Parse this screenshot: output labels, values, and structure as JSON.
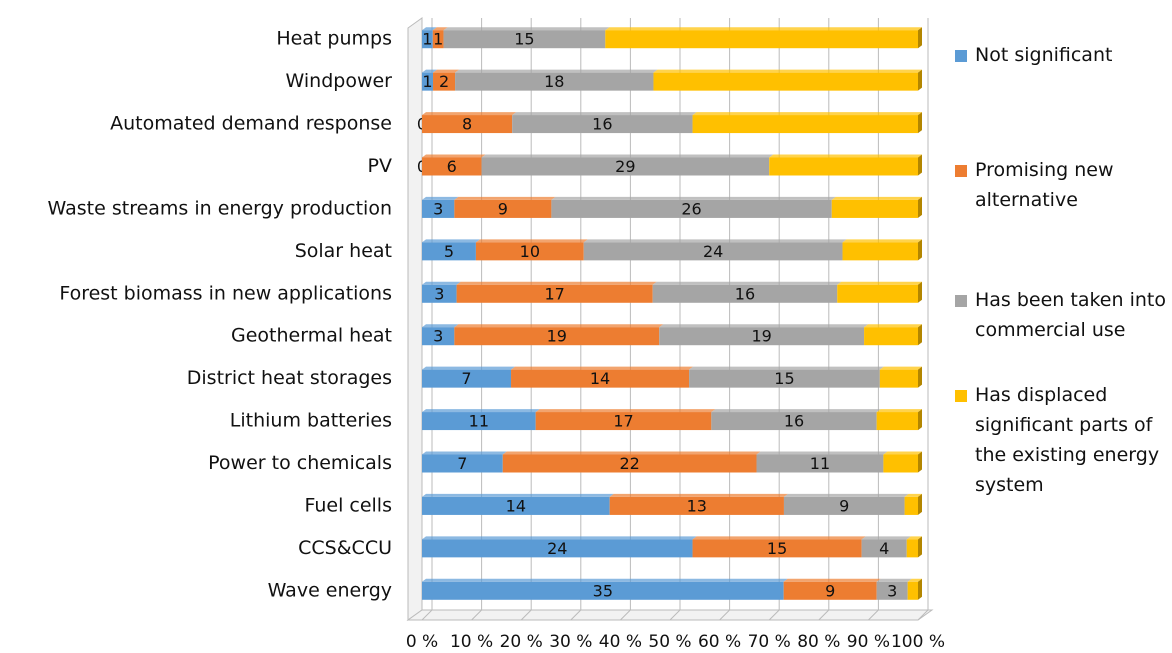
{
  "chart_data": {
    "type": "bar",
    "orientation": "horizontal",
    "stacked": "percent",
    "categories": [
      "Heat pumps",
      "Windpower",
      "Automated demand response",
      "PV",
      "Waste streams in energy production",
      "Solar heat",
      "Forest biomass in new applications",
      "Geothermal heat",
      "District heat storages",
      "Lithium batteries",
      "Power to chemicals",
      "Fuel cells",
      "CCS&CCU",
      "Wave energy"
    ],
    "series": [
      {
        "name": "Not significant",
        "color": "#5b9bd5",
        "data_labels": true,
        "values": [
          1,
          1,
          0,
          0,
          3,
          5,
          3,
          3,
          7,
          11,
          7,
          14,
          24,
          35
        ]
      },
      {
        "name": "Promising new alternative",
        "color": "#ed7d31",
        "data_labels": true,
        "values": [
          1,
          2,
          8,
          6,
          9,
          10,
          17,
          19,
          14,
          17,
          22,
          13,
          15,
          9
        ]
      },
      {
        "name": "Has been taken into commercial use",
        "color": "#a5a5a5",
        "data_labels": true,
        "values": [
          15,
          18,
          16,
          29,
          26,
          24,
          16,
          19,
          15,
          16,
          11,
          9,
          4,
          3
        ]
      },
      {
        "name": "Has displaced significant parts of the existing energy system",
        "color": "#ffc000",
        "data_labels": false,
        "values": [
          29,
          24,
          20,
          15,
          8,
          7,
          7,
          5,
          3,
          4,
          3,
          1,
          1,
          1
        ]
      }
    ],
    "xlim": [
      0,
      100
    ],
    "xticks": [
      {
        "value": 0,
        "label": "0 %"
      },
      {
        "value": 10,
        "label": "10 %"
      },
      {
        "value": 20,
        "label": "20 %"
      },
      {
        "value": 30,
        "label": "30 %"
      },
      {
        "value": 40,
        "label": "40 %"
      },
      {
        "value": 50,
        "label": "50 %"
      },
      {
        "value": 60,
        "label": "60 %"
      },
      {
        "value": 70,
        "label": "70 %"
      },
      {
        "value": 80,
        "label": "80 %"
      },
      {
        "value": 90,
        "label": "90 %"
      },
      {
        "value": 100,
        "label": "100 %"
      }
    ],
    "grid": true,
    "legend": "right"
  }
}
